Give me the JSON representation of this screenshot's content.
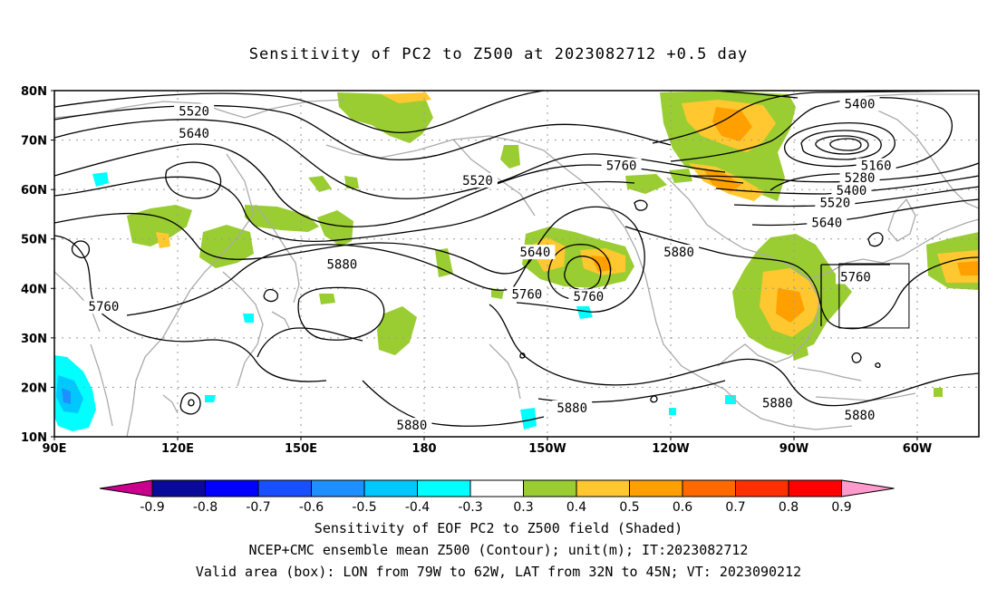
{
  "title": "Sensitivity of PC2 to Z500 at 2023082712 +0.5 day",
  "captions": [
    "Sensitivity of EOF PC2 to Z500 field (Shaded)",
    "NCEP+CMC ensemble mean Z500 (Contour); unit(m); IT:2023082712",
    "Valid area (box): LON from 79W to 62W, LAT from 32N to 45N; VT: 2023090212"
  ],
  "map": {
    "lat_range": [
      10,
      80
    ],
    "lon_range_east": [
      90,
      315
    ],
    "lat_labels": [
      {
        "lat": 80,
        "text": "80N"
      },
      {
        "lat": 70,
        "text": "70N"
      },
      {
        "lat": 60,
        "text": "60N"
      },
      {
        "lat": 50,
        "text": "50N"
      },
      {
        "lat": 40,
        "text": "40N"
      },
      {
        "lat": 30,
        "text": "30N"
      },
      {
        "lat": 20,
        "text": "20N"
      },
      {
        "lat": 10,
        "text": "10N"
      }
    ],
    "lon_labels": [
      {
        "lon": 90,
        "text": "90E"
      },
      {
        "lon": 120,
        "text": "120E"
      },
      {
        "lon": 150,
        "text": "150E"
      },
      {
        "lon": 180,
        "text": "180"
      },
      {
        "lon": 210,
        "text": "150W"
      },
      {
        "lon": 240,
        "text": "120W"
      },
      {
        "lon": 270,
        "text": "90W"
      },
      {
        "lon": 300,
        "text": "60W"
      }
    ],
    "valid_box": {
      "lon_min": 281,
      "lon_max": 298,
      "lat_min": 32,
      "lat_max": 45
    },
    "contour_labels": [
      {
        "text": "5520",
        "lon": 124,
        "lat": 75.5
      },
      {
        "text": "5640",
        "lon": 124,
        "lat": 71
      },
      {
        "text": "5520",
        "lon": 193,
        "lat": 61.5
      },
      {
        "text": "5760",
        "lon": 228,
        "lat": 64.5
      },
      {
        "text": "5400",
        "lon": 286,
        "lat": 77
      },
      {
        "text": "5160",
        "lon": 290,
        "lat": 64.5
      },
      {
        "text": "5280",
        "lon": 286,
        "lat": 62
      },
      {
        "text": "5400",
        "lon": 284,
        "lat": 59.5
      },
      {
        "text": "5520",
        "lon": 280,
        "lat": 57
      },
      {
        "text": "5640",
        "lon": 278,
        "lat": 53
      },
      {
        "text": "5640",
        "lon": 207,
        "lat": 47
      },
      {
        "text": "5760",
        "lon": 205,
        "lat": 38.5
      },
      {
        "text": "5760",
        "lon": 220,
        "lat": 38
      },
      {
        "text": "5880",
        "lon": 242,
        "lat": 47
      },
      {
        "text": "5880",
        "lon": 160,
        "lat": 44.5
      },
      {
        "text": "5760",
        "lon": 102,
        "lat": 36
      },
      {
        "text": "5760",
        "lon": 285,
        "lat": 42
      },
      {
        "text": "5880",
        "lon": 216,
        "lat": 15.5
      },
      {
        "text": "5880",
        "lon": 177,
        "lat": 12
      },
      {
        "text": "5880",
        "lon": 266,
        "lat": 16.5
      },
      {
        "text": "5880",
        "lon": 286,
        "lat": 14
      }
    ]
  },
  "colorbar": {
    "labels": [
      "-0.9",
      "-0.8",
      "-0.7",
      "-0.6",
      "-0.5",
      "-0.4",
      "-0.3",
      "0.3",
      "0.4",
      "0.5",
      "0.6",
      "0.7",
      "0.8",
      "0.9"
    ],
    "colors": [
      "#0a0a9a",
      "#0000ff",
      "#1a4fff",
      "#1e8fff",
      "#00c8ff",
      "#00ffff",
      "#ffffff",
      "#9acd32",
      "#ffc830",
      "#ffa000",
      "#ff6a00",
      "#ff3000",
      "#ff0000"
    ],
    "low_end_color": "#c8008c",
    "high_end_color": "#ff9acd"
  }
}
